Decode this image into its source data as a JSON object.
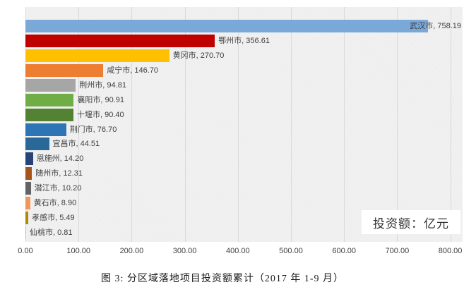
{
  "chart_data": {
    "type": "bar",
    "orientation": "horizontal",
    "title": "",
    "caption": "图 3: 分区域落地项目投资额累计（2017 年 1-9 月）",
    "unit_label": "投资额：亿元",
    "categories": [
      "武汉市",
      "鄂州市",
      "黄冈市",
      "咸宁市",
      "荆州市",
      "襄阳市",
      "十堰市",
      "荆门市",
      "宜昌市",
      "恩施州",
      "随州市",
      "潜江市",
      "黄石市",
      "孝感市",
      "仙桃市"
    ],
    "values": [
      758.19,
      356.61,
      270.7,
      146.7,
      94.81,
      90.91,
      90.4,
      76.7,
      44.51,
      14.2,
      12.31,
      10.2,
      8.9,
      5.49,
      0.81
    ],
    "value_labels": [
      "758.19",
      "356.61",
      "270.70",
      "146.70",
      "94.81",
      "90.91",
      "90.40",
      "76.70",
      "44.51",
      "14.20",
      "12.31",
      "10.20",
      "8.90",
      "5.49",
      "0.81"
    ],
    "bar_colors": [
      "#79a8d9",
      "#c00000",
      "#ffc000",
      "#ed7d31",
      "#a6a6a6",
      "#70ad47",
      "#548235",
      "#2e75b6",
      "#2a6899",
      "#264478",
      "#a5551c",
      "#636363",
      "#f1975a",
      "#ad8a00",
      "#b3bfce"
    ],
    "label_inside_end": [
      true,
      false,
      false,
      false,
      false,
      false,
      false,
      false,
      false,
      false,
      false,
      false,
      false,
      false,
      false
    ],
    "xlim": [
      0,
      800
    ],
    "x_ticks": [
      "0.00",
      "100.00",
      "200.00",
      "300.00",
      "400.00",
      "500.00",
      "600.00",
      "700.00",
      "800.00"
    ],
    "grid": true,
    "plot_background": "#f1f1f1",
    "gridline_color": "#d9d9d9",
    "text_color": "#3f3f3f"
  }
}
